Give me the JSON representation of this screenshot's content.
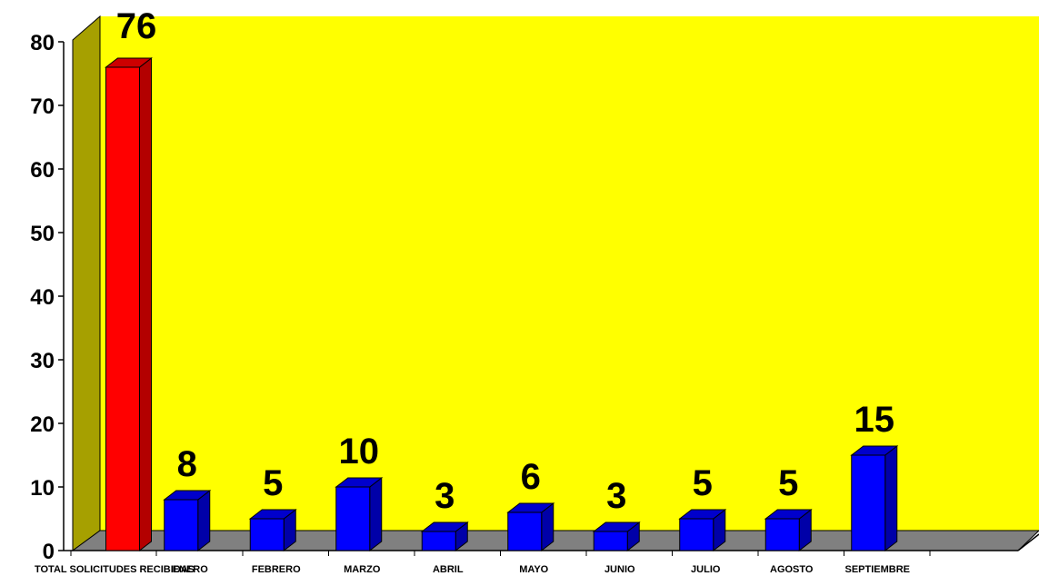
{
  "chart_data": {
    "type": "bar",
    "categories": [
      "TOTAL SOLICITUDES RECIBIDAS",
      "ENERO",
      "FEBRERO",
      "MARZO",
      "ABRIL",
      "MAYO",
      "JUNIO",
      "JULIO",
      "AGOSTO",
      "SEPTIEMBRE"
    ],
    "values": [
      76,
      8,
      5,
      10,
      3,
      6,
      3,
      5,
      5,
      15
    ],
    "data_labels": [
      "76",
      "8",
      "5",
      "10",
      "3",
      "6",
      "3",
      "5",
      "5",
      "15"
    ],
    "ylim": [
      0,
      80
    ],
    "yticks": [
      "0",
      "10",
      "20",
      "30",
      "40",
      "50",
      "60",
      "70",
      "80"
    ],
    "style": "3d",
    "grid": false,
    "colors": {
      "background_wall": "#ffff00",
      "side_wall": "#a6a000",
      "floor": "#808080",
      "bar_highlight": "#ff0000",
      "bar_highlight_side": "#b30000",
      "bar_highlight_top": "#cc0000",
      "bar_default": "#0000ff",
      "bar_default_side": "#0000a8",
      "bar_default_top": "#0000cc"
    }
  }
}
